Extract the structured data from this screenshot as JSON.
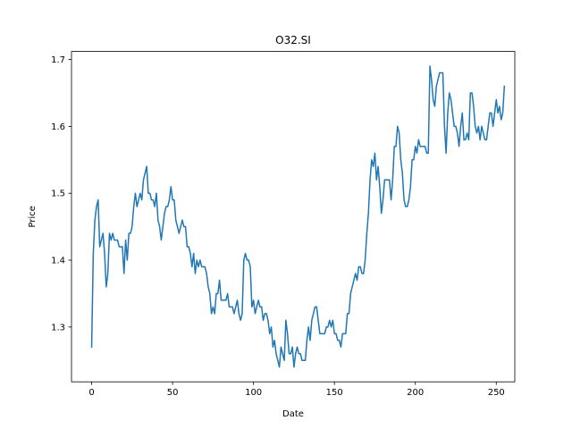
{
  "chart_data": {
    "type": "line",
    "title": "O32.SI",
    "xlabel": "Date",
    "ylabel": "Price",
    "xlim": [
      -12.45,
      261.45
    ],
    "ylim": [
      1.218,
      1.712
    ],
    "xticks": [
      0,
      50,
      100,
      150,
      200,
      250
    ],
    "yticks": [
      1.3,
      1.4,
      1.5,
      1.6,
      1.7
    ],
    "grid": false,
    "series": [
      {
        "color": "#1f77b4",
        "x_start": 0,
        "x_step": 1,
        "values": [
          1.27,
          1.41,
          1.46,
          1.48,
          1.49,
          1.42,
          1.43,
          1.44,
          1.41,
          1.36,
          1.38,
          1.44,
          1.43,
          1.44,
          1.43,
          1.43,
          1.43,
          1.42,
          1.42,
          1.42,
          1.38,
          1.43,
          1.4,
          1.44,
          1.44,
          1.45,
          1.48,
          1.5,
          1.48,
          1.49,
          1.5,
          1.49,
          1.52,
          1.53,
          1.54,
          1.5,
          1.5,
          1.49,
          1.49,
          1.48,
          1.5,
          1.46,
          1.45,
          1.43,
          1.45,
          1.47,
          1.48,
          1.48,
          1.49,
          1.51,
          1.49,
          1.49,
          1.46,
          1.45,
          1.44,
          1.45,
          1.46,
          1.45,
          1.45,
          1.42,
          1.42,
          1.41,
          1.39,
          1.41,
          1.38,
          1.4,
          1.39,
          1.4,
          1.39,
          1.39,
          1.39,
          1.38,
          1.36,
          1.35,
          1.32,
          1.33,
          1.32,
          1.35,
          1.35,
          1.37,
          1.34,
          1.34,
          1.34,
          1.34,
          1.35,
          1.33,
          1.33,
          1.33,
          1.32,
          1.33,
          1.34,
          1.32,
          1.31,
          1.32,
          1.4,
          1.41,
          1.4,
          1.4,
          1.39,
          1.33,
          1.34,
          1.32,
          1.33,
          1.34,
          1.33,
          1.33,
          1.31,
          1.32,
          1.32,
          1.31,
          1.29,
          1.3,
          1.27,
          1.28,
          1.26,
          1.25,
          1.24,
          1.27,
          1.26,
          1.25,
          1.31,
          1.29,
          1.26,
          1.26,
          1.27,
          1.24,
          1.26,
          1.27,
          1.26,
          1.26,
          1.25,
          1.25,
          1.25,
          1.28,
          1.3,
          1.28,
          1.31,
          1.32,
          1.33,
          1.33,
          1.31,
          1.29,
          1.29,
          1.29,
          1.29,
          1.3,
          1.3,
          1.31,
          1.3,
          1.31,
          1.29,
          1.29,
          1.28,
          1.28,
          1.27,
          1.29,
          1.29,
          1.29,
          1.32,
          1.32,
          1.35,
          1.36,
          1.37,
          1.38,
          1.37,
          1.39,
          1.39,
          1.38,
          1.38,
          1.4,
          1.44,
          1.47,
          1.52,
          1.55,
          1.54,
          1.56,
          1.52,
          1.54,
          1.51,
          1.47,
          1.49,
          1.52,
          1.52,
          1.52,
          1.52,
          1.49,
          1.52,
          1.57,
          1.57,
          1.6,
          1.59,
          1.55,
          1.53,
          1.49,
          1.48,
          1.48,
          1.49,
          1.51,
          1.55,
          1.55,
          1.57,
          1.56,
          1.58,
          1.57,
          1.57,
          1.57,
          1.57,
          1.56,
          1.56,
          1.69,
          1.67,
          1.64,
          1.63,
          1.66,
          1.67,
          1.68,
          1.68,
          1.68,
          1.6,
          1.56,
          1.62,
          1.65,
          1.64,
          1.62,
          1.6,
          1.6,
          1.59,
          1.57,
          1.6,
          1.62,
          1.58,
          1.58,
          1.59,
          1.58,
          1.65,
          1.65,
          1.63,
          1.6,
          1.59,
          1.6,
          1.58,
          1.6,
          1.59,
          1.58,
          1.58,
          1.6,
          1.62,
          1.62,
          1.6,
          1.62,
          1.64,
          1.62,
          1.63,
          1.61,
          1.62,
          1.66
        ]
      }
    ]
  }
}
